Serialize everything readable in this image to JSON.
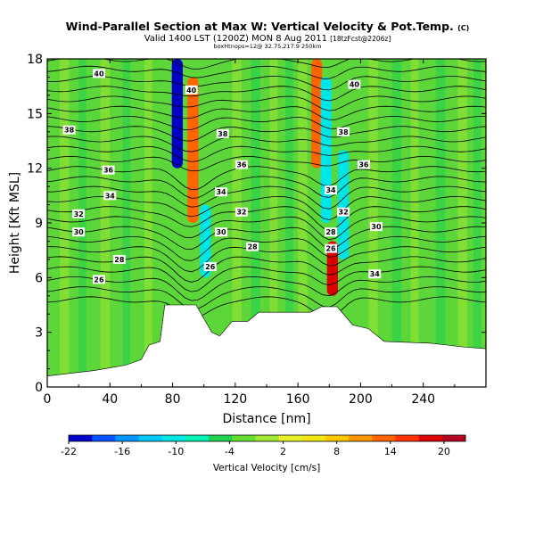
{
  "header": {
    "title": "Wind-Parallel Section at Max W: Vertical Velocity & Pot.Temp.",
    "title_mark": "(C)",
    "valid_line": "Valid 1400 LST (1200Z) MON 8 Aug 2011",
    "valid_suffix": "[18tzFcst@2206z]",
    "subline": "boxHtnops=12@ 32.75,217.9 250km"
  },
  "chart_data": {
    "type": "heatmap",
    "title": "Wind-Parallel Section at Max W: Vertical Velocity & Pot.Temp.",
    "xlabel": "Distance [nm]",
    "ylabel": "Height [Kft MSL]",
    "xlim": [
      0,
      280
    ],
    "ylim": [
      0,
      18
    ],
    "x_ticks": [
      "0",
      "40",
      "80",
      "120",
      "160",
      "200",
      "240"
    ],
    "y_ticks": [
      "0",
      "3",
      "6",
      "9",
      "12",
      "15",
      "18"
    ],
    "colorbar": {
      "label": "Vertical Velocity [cm/s]",
      "tick_labels": [
        "-22",
        "-16",
        "-10",
        "-4",
        "2",
        "8",
        "14",
        "20"
      ],
      "colors": [
        "#0000c8",
        "#0050ff",
        "#0096ff",
        "#00c8ff",
        "#00e6e6",
        "#00f0b4",
        "#20d250",
        "#64dc32",
        "#a0e632",
        "#e6f028",
        "#f0e614",
        "#ffc800",
        "#ff9600",
        "#ff6400",
        "#ff3200",
        "#dc0000",
        "#b4001e"
      ]
    },
    "features": [
      {
        "name": "downdraft",
        "x": 83,
        "zmin": 12,
        "zmax": 18,
        "value": -22
      },
      {
        "name": "updraft",
        "x": 93,
        "zmin": 9,
        "zmax": 17,
        "value": 14
      },
      {
        "name": "downdraft",
        "x": 101,
        "zmin": 6,
        "zmax": 10,
        "value": -10
      },
      {
        "name": "updraft",
        "x": 172,
        "zmin": 12,
        "zmax": 18,
        "value": 14
      },
      {
        "name": "downdraft",
        "x": 178,
        "zmin": 9,
        "zmax": 17,
        "value": -12
      },
      {
        "name": "updraft",
        "x": 182,
        "zmin": 5,
        "zmax": 8,
        "value": 20
      },
      {
        "name": "downdraft",
        "x": 189,
        "zmin": 7,
        "zmax": 13,
        "value": -10
      }
    ],
    "terrain": [
      [
        0,
        0.6
      ],
      [
        30,
        0.9
      ],
      [
        50,
        1.2
      ],
      [
        60,
        1.5
      ],
      [
        65,
        2.3
      ],
      [
        72,
        2.5
      ],
      [
        75,
        4.5
      ],
      [
        95,
        4.5
      ],
      [
        105,
        3.0
      ],
      [
        110,
        2.8
      ],
      [
        118,
        3.6
      ],
      [
        128,
        3.6
      ],
      [
        135,
        4.1
      ],
      [
        168,
        4.1
      ],
      [
        175,
        4.4
      ],
      [
        185,
        4.4
      ],
      [
        195,
        3.4
      ],
      [
        205,
        3.2
      ],
      [
        215,
        2.5
      ],
      [
        245,
        2.4
      ],
      [
        265,
        2.2
      ],
      [
        280,
        2.1
      ]
    ],
    "contour_labels": [
      {
        "text": "40",
        "x": 33,
        "z": 17.2
      },
      {
        "text": "40",
        "x": 92,
        "z": 16.3
      },
      {
        "text": "40",
        "x": 196,
        "z": 16.6
      },
      {
        "text": "38",
        "x": 14,
        "z": 14.1
      },
      {
        "text": "38",
        "x": 112,
        "z": 13.9
      },
      {
        "text": "38",
        "x": 189,
        "z": 14.0
      },
      {
        "text": "36",
        "x": 39,
        "z": 11.9
      },
      {
        "text": "36",
        "x": 124,
        "z": 12.2
      },
      {
        "text": "36",
        "x": 202,
        "z": 12.2
      },
      {
        "text": "34",
        "x": 40,
        "z": 10.5
      },
      {
        "text": "34",
        "x": 111,
        "z": 10.7
      },
      {
        "text": "34",
        "x": 181,
        "z": 10.8
      },
      {
        "text": "32",
        "x": 20,
        "z": 9.5
      },
      {
        "text": "32",
        "x": 124,
        "z": 9.6
      },
      {
        "text": "32",
        "x": 189,
        "z": 9.6
      },
      {
        "text": "30",
        "x": 20,
        "z": 8.5
      },
      {
        "text": "30",
        "x": 111,
        "z": 8.5
      },
      {
        "text": "30",
        "x": 210,
        "z": 8.8
      },
      {
        "text": "28",
        "x": 46,
        "z": 7.0
      },
      {
        "text": "28",
        "x": 131,
        "z": 7.7
      },
      {
        "text": "28",
        "x": 181,
        "z": 8.5
      },
      {
        "text": "26",
        "x": 33,
        "z": 5.9
      },
      {
        "text": "26",
        "x": 104,
        "z": 6.6
      },
      {
        "text": "26",
        "x": 181,
        "z": 7.6
      },
      {
        "text": "34",
        "x": 209,
        "z": 6.2
      }
    ]
  }
}
